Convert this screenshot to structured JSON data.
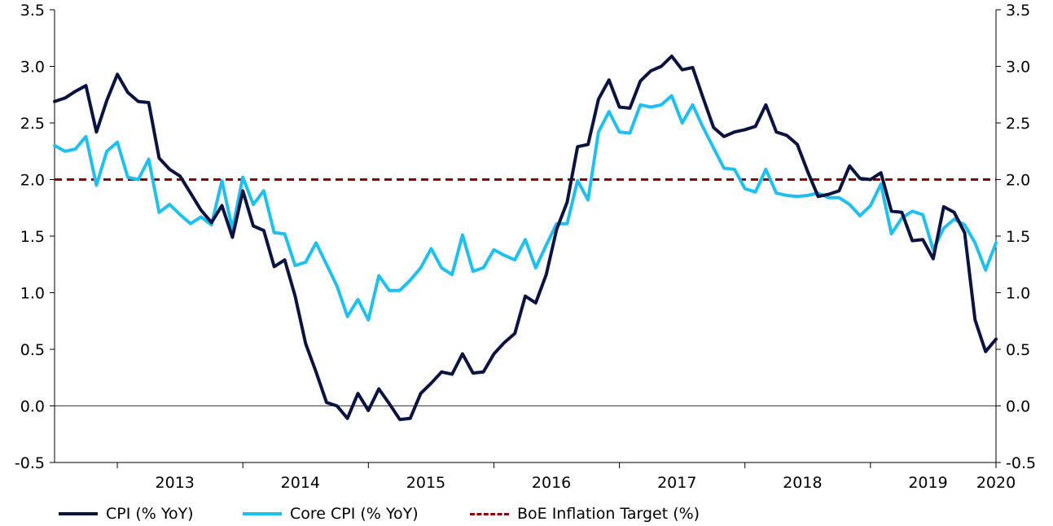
{
  "chart_data": {
    "type": "line",
    "title": "",
    "xlabel": "",
    "ylabel": "",
    "ylim": [
      -0.5,
      3.5
    ],
    "yticks": [
      "-0.5",
      "0.0",
      "0.5",
      "1.0",
      "1.5",
      "2.0",
      "2.5",
      "3.0",
      "3.5"
    ],
    "y_axes": "left and right (mirrored)",
    "x_start": "2012-07",
    "x_end": "2020-05",
    "year_labels": [
      "2013",
      "2014",
      "2015",
      "2016",
      "2017",
      "2018",
      "2019",
      "2020"
    ],
    "grid": false,
    "legend_position": "bottom",
    "series": [
      {
        "name": "CPI (% YoY)",
        "color": "#0b1340",
        "style": "solid",
        "values": [
          2.69,
          2.72,
          2.78,
          2.83,
          2.42,
          2.7,
          2.93,
          2.77,
          2.69,
          2.68,
          2.19,
          2.09,
          2.03,
          1.88,
          1.73,
          1.62,
          1.77,
          1.49,
          1.9,
          1.59,
          1.55,
          1.23,
          1.29,
          0.97,
          0.55,
          0.3,
          0.03,
          0.0,
          -0.11,
          0.11,
          -0.04,
          0.15,
          0.02,
          -0.12,
          -0.11,
          0.11,
          0.2,
          0.3,
          0.28,
          0.46,
          0.29,
          0.3,
          0.46,
          0.56,
          0.64,
          0.97,
          0.91,
          1.16,
          1.56,
          1.8,
          2.29,
          2.31,
          2.71,
          2.88,
          2.64,
          2.63,
          2.87,
          2.96,
          3.0,
          3.09,
          2.97,
          2.99,
          2.72,
          2.46,
          2.38,
          2.42,
          2.44,
          2.47,
          2.66,
          2.42,
          2.39,
          2.31,
          2.07,
          1.85,
          1.87,
          1.9,
          2.12,
          2.01,
          2.0,
          2.06,
          1.72,
          1.71,
          1.46,
          1.47,
          1.3,
          1.76,
          1.71,
          1.53,
          0.76,
          0.48,
          0.59
        ]
      },
      {
        "name": "Core CPI (% YoY)",
        "color": "#1fc0ef",
        "style": "solid",
        "values": [
          2.3,
          2.25,
          2.27,
          2.38,
          1.95,
          2.25,
          2.33,
          2.02,
          2.0,
          2.18,
          1.71,
          1.78,
          1.69,
          1.61,
          1.67,
          1.6,
          1.99,
          1.56,
          2.02,
          1.78,
          1.9,
          1.53,
          1.52,
          1.24,
          1.27,
          1.44,
          1.25,
          1.06,
          0.79,
          0.94,
          0.76,
          1.15,
          1.02,
          1.02,
          1.11,
          1.22,
          1.39,
          1.22,
          1.16,
          1.51,
          1.19,
          1.22,
          1.38,
          1.33,
          1.29,
          1.47,
          1.22,
          1.42,
          1.61,
          1.61,
          1.99,
          1.82,
          2.42,
          2.6,
          2.42,
          2.41,
          2.66,
          2.64,
          2.66,
          2.74,
          2.5,
          2.66,
          2.46,
          2.28,
          2.1,
          2.09,
          1.92,
          1.89,
          2.09,
          1.88,
          1.86,
          1.85,
          1.86,
          1.88,
          1.84,
          1.84,
          1.78,
          1.68,
          1.77,
          1.96,
          1.52,
          1.66,
          1.72,
          1.69,
          1.38,
          1.57,
          1.65,
          1.6,
          1.44,
          1.2,
          1.44
        ]
      },
      {
        "name": "BoE Inflation Target (%)",
        "color": "#8b0000",
        "style": "dashed",
        "values": [
          2.0,
          2.0
        ]
      }
    ]
  },
  "legend": {
    "cpi_label": "CPI (% YoY)",
    "core_label": "Core CPI (% YoY)",
    "target_label": "BoE Inflation Target (%)"
  }
}
